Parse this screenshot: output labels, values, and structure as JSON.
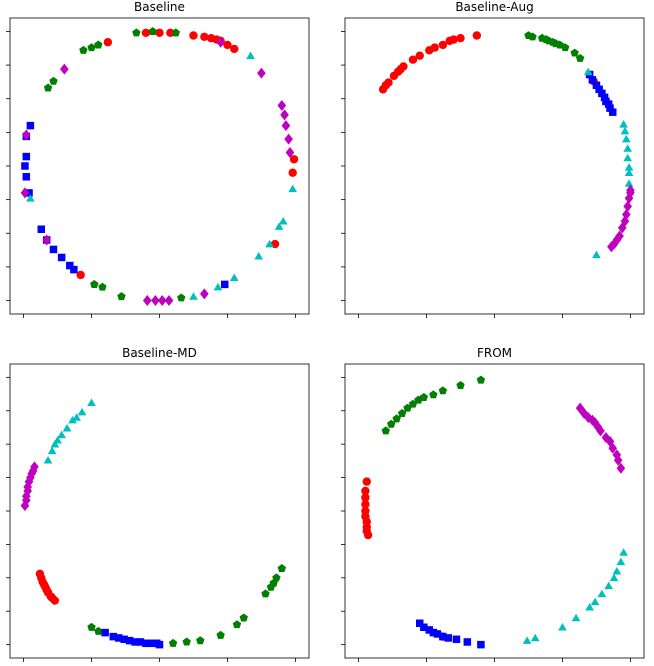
{
  "chart_data": [
    {
      "type": "scatter",
      "title": "Baseline",
      "xlim": [
        -1.1,
        1.1
      ],
      "ylim": [
        -1.1,
        1.1
      ],
      "grid": false,
      "series": [
        {
          "color": "#ff0000",
          "marker": "circle",
          "points": [
            [
              -0.38,
              0.92
            ],
            [
              -0.1,
              0.99
            ],
            [
              0.0,
              0.99
            ],
            [
              0.08,
              0.99
            ],
            [
              0.25,
              0.97
            ],
            [
              0.33,
              0.96
            ],
            [
              0.38,
              0.95
            ],
            [
              0.42,
              0.94
            ],
            [
              0.45,
              0.93
            ],
            [
              0.5,
              0.9
            ],
            [
              0.55,
              0.87
            ],
            [
              0.98,
              -0.05
            ],
            [
              0.99,
              0.05
            ],
            [
              0.85,
              -0.58
            ],
            [
              -0.58,
              -0.81
            ]
          ]
        },
        {
          "color": "#008000",
          "marker": "pentagon",
          "points": [
            [
              -0.17,
              0.99
            ],
            [
              -0.05,
              1.0
            ],
            [
              0.12,
              0.99
            ],
            [
              -0.56,
              0.86
            ],
            [
              -0.5,
              0.88
            ],
            [
              -0.45,
              0.9
            ],
            [
              -0.78,
              0.63
            ],
            [
              -0.82,
              0.58
            ],
            [
              -0.28,
              -0.97
            ],
            [
              -0.48,
              -0.88
            ],
            [
              -0.42,
              -0.9
            ],
            [
              0.16,
              -0.98
            ]
          ]
        },
        {
          "color": "#0000ff",
          "marker": "square",
          "points": [
            [
              -0.95,
              0.3
            ],
            [
              -0.98,
              0.22
            ],
            [
              -0.98,
              0.07
            ],
            [
              -0.99,
              0.0
            ],
            [
              -0.98,
              -0.08
            ],
            [
              -0.96,
              -0.2
            ],
            [
              -0.87,
              -0.47
            ],
            [
              -0.83,
              -0.55
            ],
            [
              -0.78,
              -0.62
            ],
            [
              -0.72,
              -0.68
            ],
            [
              -0.66,
              -0.74
            ],
            [
              -0.63,
              -0.77
            ],
            [
              0.48,
              -0.88
            ]
          ]
        },
        {
          "color": "#00bfbf",
          "marker": "triangle",
          "points": [
            [
              -0.95,
              -0.24
            ],
            [
              0.25,
              -0.97
            ],
            [
              0.43,
              -0.9
            ],
            [
              0.55,
              -0.83
            ],
            [
              0.73,
              -0.67
            ],
            [
              0.81,
              -0.58
            ],
            [
              0.88,
              -0.45
            ],
            [
              0.91,
              -0.41
            ],
            [
              0.98,
              -0.17
            ],
            [
              0.67,
              0.82
            ]
          ]
        },
        {
          "color": "#bf00bf",
          "marker": "diamond",
          "points": [
            [
              -0.7,
              0.72
            ],
            [
              -0.98,
              0.23
            ],
            [
              -0.99,
              -0.2
            ],
            [
              -0.83,
              -0.55
            ],
            [
              -0.09,
              -1.0
            ],
            [
              -0.03,
              -1.0
            ],
            [
              0.02,
              -1.0
            ],
            [
              0.07,
              -1.0
            ],
            [
              0.33,
              -0.95
            ],
            [
              0.45,
              0.92
            ],
            [
              0.75,
              0.69
            ],
            [
              0.9,
              0.45
            ],
            [
              0.92,
              0.38
            ],
            [
              0.93,
              0.3
            ],
            [
              0.95,
              0.2
            ],
            [
              0.96,
              0.1
            ]
          ]
        }
      ]
    },
    {
      "type": "scatter",
      "title": "Baseline-Aug",
      "xlim": [
        -1.1,
        1.1
      ],
      "ylim": [
        -1.1,
        1.1
      ],
      "grid": false,
      "series": [
        {
          "color": "#ff0000",
          "marker": "circle",
          "points": [
            [
              -0.82,
              0.57
            ],
            [
              -0.8,
              0.6
            ],
            [
              -0.78,
              0.62
            ],
            [
              -0.74,
              0.67
            ],
            [
              -0.71,
              0.7
            ],
            [
              -0.69,
              0.72
            ],
            [
              -0.67,
              0.74
            ],
            [
              -0.6,
              0.79
            ],
            [
              -0.55,
              0.82
            ],
            [
              -0.48,
              0.86
            ],
            [
              -0.44,
              0.88
            ],
            [
              -0.38,
              0.9
            ],
            [
              -0.33,
              0.93
            ],
            [
              -0.3,
              0.94
            ],
            [
              -0.25,
              0.95
            ],
            [
              -0.13,
              0.97
            ],
            [
              0.73,
              0.63
            ]
          ]
        },
        {
          "color": "#008000",
          "marker": "pentagon",
          "points": [
            [
              0.25,
              0.97
            ],
            [
              0.28,
              0.96
            ],
            [
              0.35,
              0.95
            ],
            [
              0.38,
              0.94
            ],
            [
              0.4,
              0.93
            ],
            [
              0.43,
              0.92
            ],
            [
              0.45,
              0.91
            ],
            [
              0.48,
              0.9
            ],
            [
              0.52,
              0.88
            ],
            [
              0.59,
              0.84
            ],
            [
              0.63,
              0.8
            ]
          ]
        },
        {
          "color": "#0000ff",
          "marker": "square",
          "points": [
            [
              0.7,
              0.68
            ],
            [
              0.72,
              0.64
            ],
            [
              0.75,
              0.6
            ],
            [
              0.77,
              0.57
            ],
            [
              0.79,
              0.54
            ],
            [
              0.81,
              0.51
            ],
            [
              0.82,
              0.48
            ],
            [
              0.84,
              0.46
            ],
            [
              0.85,
              0.43
            ],
            [
              0.87,
              0.4
            ]
          ]
        },
        {
          "color": "#00bfbf",
          "marker": "triangle",
          "points": [
            [
              0.69,
              0.7
            ],
            [
              0.95,
              0.31
            ],
            [
              0.96,
              0.26
            ],
            [
              0.97,
              0.2
            ],
            [
              0.98,
              0.13
            ],
            [
              0.98,
              0.06
            ],
            [
              0.99,
              -0.01
            ],
            [
              0.99,
              -0.05
            ],
            [
              0.99,
              -0.13
            ],
            [
              0.75,
              -0.66
            ]
          ]
        },
        {
          "color": "#bf00bf",
          "marker": "diamond",
          "points": [
            [
              1.0,
              -0.18
            ],
            [
              0.99,
              -0.24
            ],
            [
              0.98,
              -0.3
            ],
            [
              0.97,
              -0.36
            ],
            [
              0.96,
              -0.41
            ],
            [
              0.94,
              -0.46
            ],
            [
              0.92,
              -0.52
            ],
            [
              0.9,
              -0.55
            ],
            [
              0.88,
              -0.58
            ],
            [
              0.86,
              -0.6
            ],
            [
              1.0,
              -0.2
            ]
          ]
        }
      ]
    },
    {
      "type": "scatter",
      "title": "Baseline-MD",
      "xlim": [
        -1.1,
        1.1
      ],
      "ylim": [
        -1.1,
        1.1
      ],
      "grid": false,
      "series": [
        {
          "color": "#ff0000",
          "marker": "circle",
          "points": [
            [
              -0.88,
              -0.47
            ],
            [
              -0.87,
              -0.5
            ],
            [
              -0.86,
              -0.53
            ],
            [
              -0.85,
              -0.55
            ],
            [
              -0.84,
              -0.57
            ],
            [
              -0.83,
              -0.59
            ],
            [
              -0.82,
              -0.61
            ],
            [
              -0.8,
              -0.64
            ],
            [
              -0.79,
              -0.65
            ],
            [
              -0.77,
              -0.67
            ]
          ]
        },
        {
          "color": "#008000",
          "marker": "pentagon",
          "points": [
            [
              -0.5,
              -0.87
            ],
            [
              -0.45,
              -0.9
            ],
            [
              0.1,
              -0.99
            ],
            [
              0.2,
              -0.98
            ],
            [
              0.3,
              -0.97
            ],
            [
              0.45,
              -0.93
            ],
            [
              0.57,
              -0.85
            ],
            [
              0.62,
              -0.8
            ],
            [
              0.78,
              -0.62
            ],
            [
              0.82,
              -0.57
            ],
            [
              0.84,
              -0.54
            ],
            [
              0.86,
              -0.5
            ],
            [
              0.9,
              -0.43
            ]
          ]
        },
        {
          "color": "#0000ff",
          "marker": "square",
          "points": [
            [
              -0.4,
              -0.91
            ],
            [
              -0.34,
              -0.94
            ],
            [
              -0.3,
              -0.95
            ],
            [
              -0.26,
              -0.96
            ],
            [
              -0.22,
              -0.97
            ],
            [
              -0.18,
              -0.98
            ],
            [
              -0.14,
              -0.98
            ],
            [
              -0.1,
              -0.99
            ],
            [
              -0.06,
              -0.99
            ],
            [
              -0.02,
              -0.99
            ],
            [
              0.0,
              -1.0
            ]
          ]
        },
        {
          "color": "#00bfbf",
          "marker": "triangle",
          "points": [
            [
              -0.82,
              0.38
            ],
            [
              -0.79,
              0.45
            ],
            [
              -0.77,
              0.5
            ],
            [
              -0.75,
              0.53
            ],
            [
              -0.72,
              0.57
            ],
            [
              -0.68,
              0.62
            ],
            [
              -0.64,
              0.68
            ],
            [
              -0.61,
              0.7
            ],
            [
              -0.57,
              0.74
            ],
            [
              -0.5,
              0.81
            ]
          ]
        },
        {
          "color": "#bf00bf",
          "marker": "diamond",
          "points": [
            [
              -0.99,
              0.04
            ],
            [
              -0.98,
              0.08
            ],
            [
              -0.98,
              0.11
            ],
            [
              -0.97,
              0.15
            ],
            [
              -0.97,
              0.18
            ],
            [
              -0.96,
              0.22
            ],
            [
              -0.95,
              0.25
            ],
            [
              -0.94,
              0.28
            ],
            [
              -0.93,
              0.3
            ],
            [
              -0.92,
              0.33
            ]
          ]
        }
      ]
    },
    {
      "type": "scatter",
      "title": "FROM",
      "xlim": [
        -1.1,
        1.1
      ],
      "ylim": [
        -1.1,
        1.1
      ],
      "grid": false,
      "series": [
        {
          "color": "#ff0000",
          "marker": "circle",
          "points": [
            [
              -0.94,
              0.22
            ],
            [
              -0.95,
              0.15
            ],
            [
              -0.95,
              0.1
            ],
            [
              -0.95,
              0.05
            ],
            [
              -0.95,
              0.0
            ],
            [
              -0.95,
              -0.04
            ],
            [
              -0.94,
              -0.08
            ],
            [
              -0.94,
              -0.12
            ],
            [
              -0.94,
              -0.15
            ],
            [
              -0.93,
              -0.18
            ],
            [
              -0.38,
              -0.94
            ]
          ]
        },
        {
          "color": "#008000",
          "marker": "pentagon",
          "points": [
            [
              -0.8,
              0.6
            ],
            [
              -0.76,
              0.65
            ],
            [
              -0.72,
              0.69
            ],
            [
              -0.68,
              0.73
            ],
            [
              -0.64,
              0.77
            ],
            [
              -0.6,
              0.8
            ],
            [
              -0.56,
              0.83
            ],
            [
              -0.52,
              0.85
            ],
            [
              -0.45,
              0.87
            ],
            [
              -0.38,
              0.9
            ],
            [
              -0.25,
              0.94
            ],
            [
              -0.1,
              0.98
            ]
          ]
        },
        {
          "color": "#0000ff",
          "marker": "square",
          "points": [
            [
              -0.55,
              -0.84
            ],
            [
              -0.52,
              -0.87
            ],
            [
              -0.48,
              -0.89
            ],
            [
              -0.45,
              -0.91
            ],
            [
              -0.42,
              -0.92
            ],
            [
              -0.38,
              -0.94
            ],
            [
              -0.34,
              -0.95
            ],
            [
              -0.28,
              -0.96
            ],
            [
              -0.2,
              -0.98
            ],
            [
              -0.1,
              -1.0
            ]
          ]
        },
        {
          "color": "#00bfbf",
          "marker": "triangle",
          "points": [
            [
              0.95,
              -0.31
            ],
            [
              0.93,
              -0.38
            ],
            [
              0.9,
              -0.45
            ],
            [
              0.88,
              -0.5
            ],
            [
              0.84,
              -0.56
            ],
            [
              0.79,
              -0.62
            ],
            [
              0.74,
              -0.68
            ],
            [
              0.7,
              -0.72
            ],
            [
              0.6,
              -0.8
            ],
            [
              0.5,
              -0.87
            ],
            [
              0.3,
              -0.95
            ],
            [
              0.24,
              -0.97
            ]
          ]
        },
        {
          "color": "#bf00bf",
          "marker": "diamond",
          "points": [
            [
              0.63,
              0.77
            ],
            [
              0.66,
              0.73
            ],
            [
              0.69,
              0.7
            ],
            [
              0.72,
              0.68
            ],
            [
              0.74,
              0.66
            ],
            [
              0.76,
              0.63
            ],
            [
              0.78,
              0.6
            ],
            [
              0.82,
              0.55
            ],
            [
              0.85,
              0.52
            ],
            [
              0.87,
              0.47
            ],
            [
              0.9,
              0.42
            ],
            [
              0.91,
              0.38
            ],
            [
              0.93,
              0.32
            ]
          ]
        }
      ]
    }
  ]
}
